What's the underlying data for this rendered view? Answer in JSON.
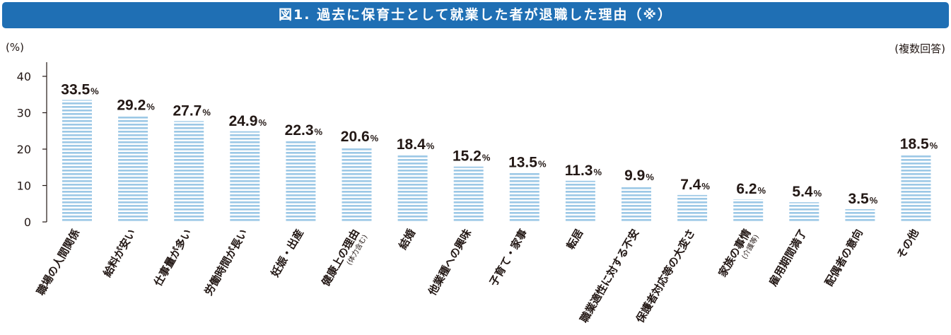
{
  "title": "図1. 過去に保育士として就業した者が退職した理由（※）",
  "unit_label": "(%)",
  "note_label": "(複数回答)",
  "colors": {
    "title_bg": "#1f6fb4",
    "bar_stripe": "#9cc8e6",
    "text": "#231815",
    "axis": "#231815"
  },
  "chart_data": {
    "type": "bar",
    "title": "図1. 過去に保育士として就業した者が退職した理由（※）",
    "ylabel": "(%)",
    "ylim": [
      0,
      40
    ],
    "yticks": [
      0,
      10,
      20,
      30,
      40
    ],
    "value_suffix": "%",
    "categories": [
      {
        "label": "職場の人間関係",
        "sublabel": ""
      },
      {
        "label": "給料が安い",
        "sublabel": ""
      },
      {
        "label": "仕事量が多い",
        "sublabel": ""
      },
      {
        "label": "労働時間が長い",
        "sublabel": ""
      },
      {
        "label": "妊娠・出産",
        "sublabel": ""
      },
      {
        "label": "健康上の理由",
        "sublabel": "(体力含む)"
      },
      {
        "label": "結婚",
        "sublabel": ""
      },
      {
        "label": "他業種への興味",
        "sublabel": ""
      },
      {
        "label": "子育て・家事",
        "sublabel": ""
      },
      {
        "label": "転居",
        "sublabel": ""
      },
      {
        "label": "職業適性に対する不安",
        "sublabel": ""
      },
      {
        "label": "保護者対応等の大変さ",
        "sublabel": ""
      },
      {
        "label": "家族の事情",
        "sublabel": "(介護等)"
      },
      {
        "label": "雇用期間満了",
        "sublabel": ""
      },
      {
        "label": "配偶者の意向",
        "sublabel": ""
      },
      {
        "label": "その他",
        "sublabel": ""
      }
    ],
    "values": [
      33.5,
      29.2,
      27.7,
      24.9,
      22.3,
      20.6,
      18.4,
      15.2,
      13.5,
      11.3,
      9.9,
      7.4,
      6.2,
      5.4,
      3.5,
      18.5
    ],
    "grid": false,
    "legend": "none"
  }
}
